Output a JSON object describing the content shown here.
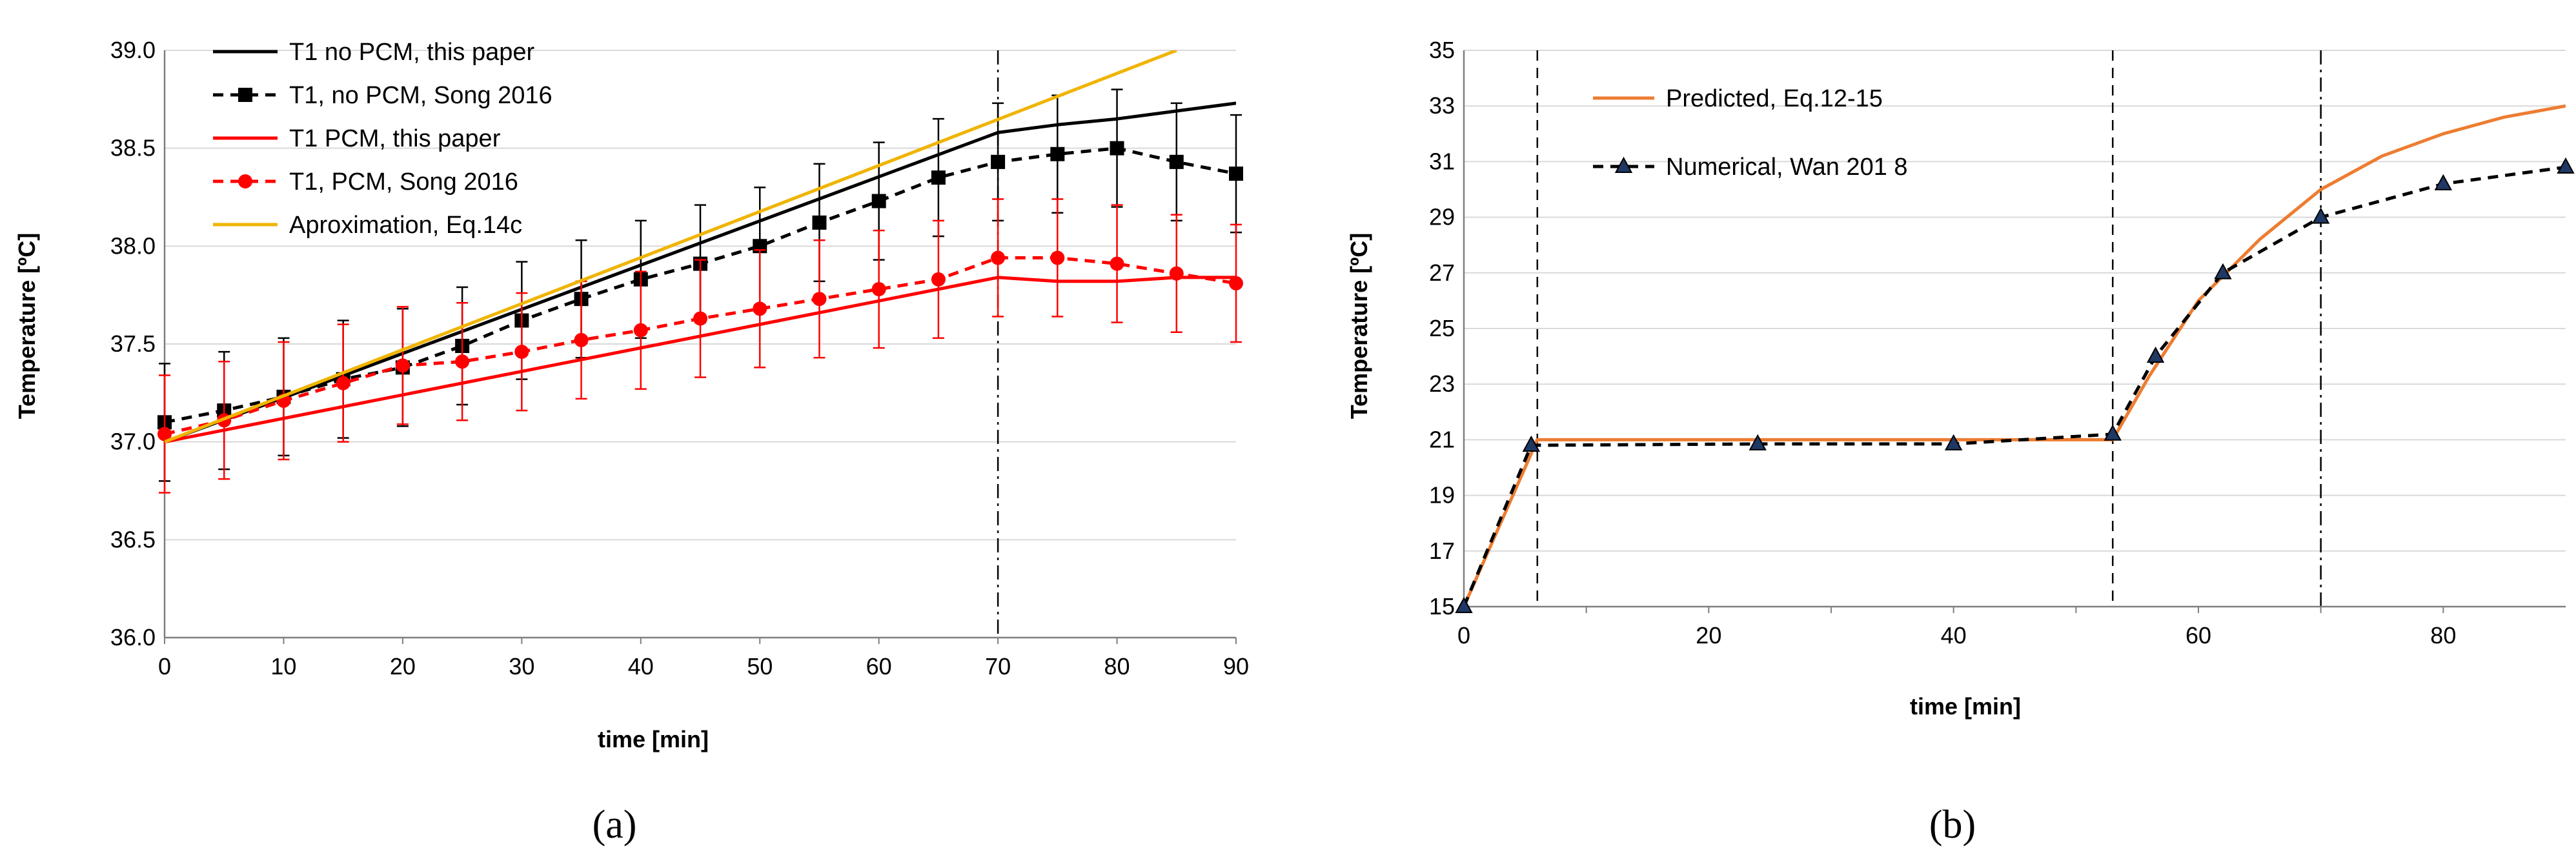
{
  "chart_data": [
    {
      "panel_label": "(a)",
      "type": "line",
      "title": "",
      "xlabel": "time [min]",
      "ylabel": "Temperature [ºC]",
      "xlim": [
        0,
        90
      ],
      "ylim": [
        36.0,
        39.0
      ],
      "xticks": [
        0,
        10,
        20,
        30,
        40,
        50,
        60,
        70,
        80,
        90
      ],
      "xtick_labels": [
        "0",
        "10",
        "20",
        "30",
        "40",
        "50",
        "60",
        "70",
        "80",
        "90"
      ],
      "yticks": [
        36.0,
        36.5,
        37.0,
        37.5,
        38.0,
        38.5,
        39.0
      ],
      "ytick_labels": [
        "36.0",
        "36.5",
        "37.0",
        "37.5",
        "38.0",
        "38.5",
        "39.0"
      ],
      "grid": "horizontal",
      "legend_position": "top-left",
      "vertical_markers": [
        {
          "x": 70,
          "style": "dash-dot"
        }
      ],
      "series": [
        {
          "name": "T1 no PCM, this paper",
          "color": "#000000",
          "dash": "solid",
          "marker": "none",
          "x": [
            0,
            70,
            75,
            80,
            85,
            90
          ],
          "y": [
            37.0,
            38.58,
            38.62,
            38.65,
            38.69,
            38.73
          ]
        },
        {
          "name": "T1, no PCM, Song 2016",
          "color": "#000000",
          "dash": "dashed",
          "marker": "square",
          "x": [
            0,
            5,
            10,
            15,
            20,
            25,
            30,
            35,
            40,
            45,
            50,
            55,
            60,
            65,
            70,
            75,
            80,
            85,
            90
          ],
          "y": [
            37.1,
            37.16,
            37.23,
            37.32,
            37.38,
            37.49,
            37.62,
            37.73,
            37.83,
            37.91,
            38.0,
            38.12,
            38.23,
            38.35,
            38.43,
            38.47,
            38.5,
            38.43,
            38.37
          ],
          "error": [
            0.3,
            0.3,
            0.3,
            0.3,
            0.3,
            0.3,
            0.3,
            0.3,
            0.3,
            0.3,
            0.3,
            0.3,
            0.3,
            0.3,
            0.3,
            0.3,
            0.3,
            0.3,
            0.3
          ]
        },
        {
          "name": "T1 PCM, this paper",
          "color": "#ff0000",
          "dash": "solid",
          "marker": "none",
          "x": [
            0,
            70,
            75,
            80,
            85,
            90
          ],
          "y": [
            37.0,
            37.84,
            37.82,
            37.82,
            37.84,
            37.84
          ]
        },
        {
          "name": "T1, PCM, Song 2016",
          "color": "#ff0000",
          "dash": "dashed",
          "marker": "circle",
          "x": [
            0,
            5,
            10,
            15,
            20,
            25,
            30,
            35,
            40,
            45,
            50,
            55,
            60,
            65,
            70,
            75,
            80,
            85,
            90
          ],
          "y": [
            37.04,
            37.11,
            37.21,
            37.3,
            37.39,
            37.41,
            37.46,
            37.52,
            37.57,
            37.63,
            37.68,
            37.73,
            37.78,
            37.83,
            37.94,
            37.94,
            37.91,
            37.86,
            37.81
          ],
          "error": [
            0.3,
            0.3,
            0.3,
            0.3,
            0.3,
            0.3,
            0.3,
            0.3,
            0.3,
            0.3,
            0.3,
            0.3,
            0.3,
            0.3,
            0.3,
            0.3,
            0.3,
            0.3,
            0.3
          ]
        },
        {
          "name": "Aproximation, Eq.14c",
          "color": "#f0b400",
          "dash": "solid",
          "marker": "none",
          "x": [
            0,
            85
          ],
          "y": [
            37.0,
            39.0
          ]
        }
      ]
    },
    {
      "panel_label": "(b)",
      "type": "line",
      "title": "",
      "xlabel": "time [min]",
      "ylabel": "Temperature [ºC]",
      "xlim": [
        0,
        90
      ],
      "ylim": [
        15,
        35
      ],
      "xticks": [
        0,
        20,
        40,
        60,
        80
      ],
      "xtick_labels": [
        "0",
        "20",
        "40",
        "60",
        "80"
      ],
      "minor_xticks": [
        10,
        30,
        50,
        70
      ],
      "yticks": [
        15,
        17,
        19,
        21,
        23,
        25,
        27,
        29,
        31,
        33,
        35
      ],
      "ytick_labels": [
        "15",
        "17",
        "19",
        "21",
        "23",
        "25",
        "27",
        "29",
        "31",
        "33",
        "35"
      ],
      "grid": "horizontal",
      "legend_position": "top-left",
      "vertical_markers": [
        {
          "x": 6,
          "style": "dashed"
        },
        {
          "x": 53,
          "style": "dashed"
        },
        {
          "x": 70,
          "style": "dash-dot"
        }
      ],
      "series": [
        {
          "name": "Predicted, Eq.12-15",
          "color": "#ed7d31",
          "dash": "solid",
          "marker": "none",
          "x": [
            0,
            6,
            53,
            56,
            60,
            65,
            70,
            75,
            80,
            85,
            90
          ],
          "y": [
            15,
            21.0,
            21.0,
            23.3,
            26.0,
            28.2,
            30.0,
            31.2,
            32.0,
            32.6,
            33.0
          ]
        },
        {
          "name": "Numerical, Wan 201 8",
          "color": "#000000",
          "dash": "dashed",
          "marker": "triangle",
          "marker_color": "#1f3864",
          "x": [
            0,
            5.5,
            24,
            40,
            53,
            56.5,
            62,
            70,
            80,
            90
          ],
          "y": [
            15,
            20.8,
            20.85,
            20.85,
            21.2,
            24.0,
            27.0,
            29.0,
            30.2,
            30.8
          ]
        }
      ]
    }
  ]
}
